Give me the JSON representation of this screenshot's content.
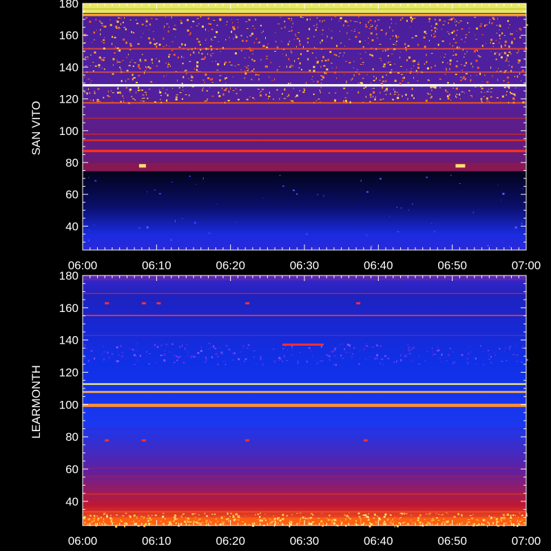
{
  "chart_data": [
    {
      "type": "heatmap",
      "ylabel": "SAN VITO",
      "xlim": [
        "06:00",
        "07:00"
      ],
      "ylim": [
        25,
        180
      ],
      "x_tick_labels": [
        "06:00",
        "06:10",
        "06:20",
        "06:30",
        "06:40",
        "06:50",
        "07:00"
      ],
      "y_tick_values": [
        40,
        60,
        80,
        100,
        120,
        140,
        160,
        180
      ],
      "y_tick_labels": [
        "40",
        "60",
        "80",
        "100",
        "120",
        "140",
        "160",
        "180"
      ],
      "grid": false,
      "colors": {
        "background": "#000000",
        "low": "#1424e8",
        "mid": "#5a1fa0",
        "high": "#ff5020",
        "peak": "#f0f060"
      }
    },
    {
      "type": "heatmap",
      "ylabel": "LEARMONTH",
      "xlim": [
        "06:00",
        "07:00"
      ],
      "ylim": [
        25,
        180
      ],
      "x_tick_labels": [
        "06:00",
        "06:10",
        "06:20",
        "06:30",
        "06:40",
        "06:50",
        "07:00"
      ],
      "y_tick_values": [
        40,
        60,
        80,
        100,
        120,
        140,
        160,
        180
      ],
      "y_tick_labels": [
        "40",
        "60",
        "80",
        "100",
        "120",
        "140",
        "160",
        "180"
      ],
      "grid": false,
      "colors": {
        "background": "#000000",
        "low": "#1424e8",
        "mid": "#5a1fa0",
        "high": "#ff5020",
        "peak": "#f0f060"
      }
    }
  ]
}
